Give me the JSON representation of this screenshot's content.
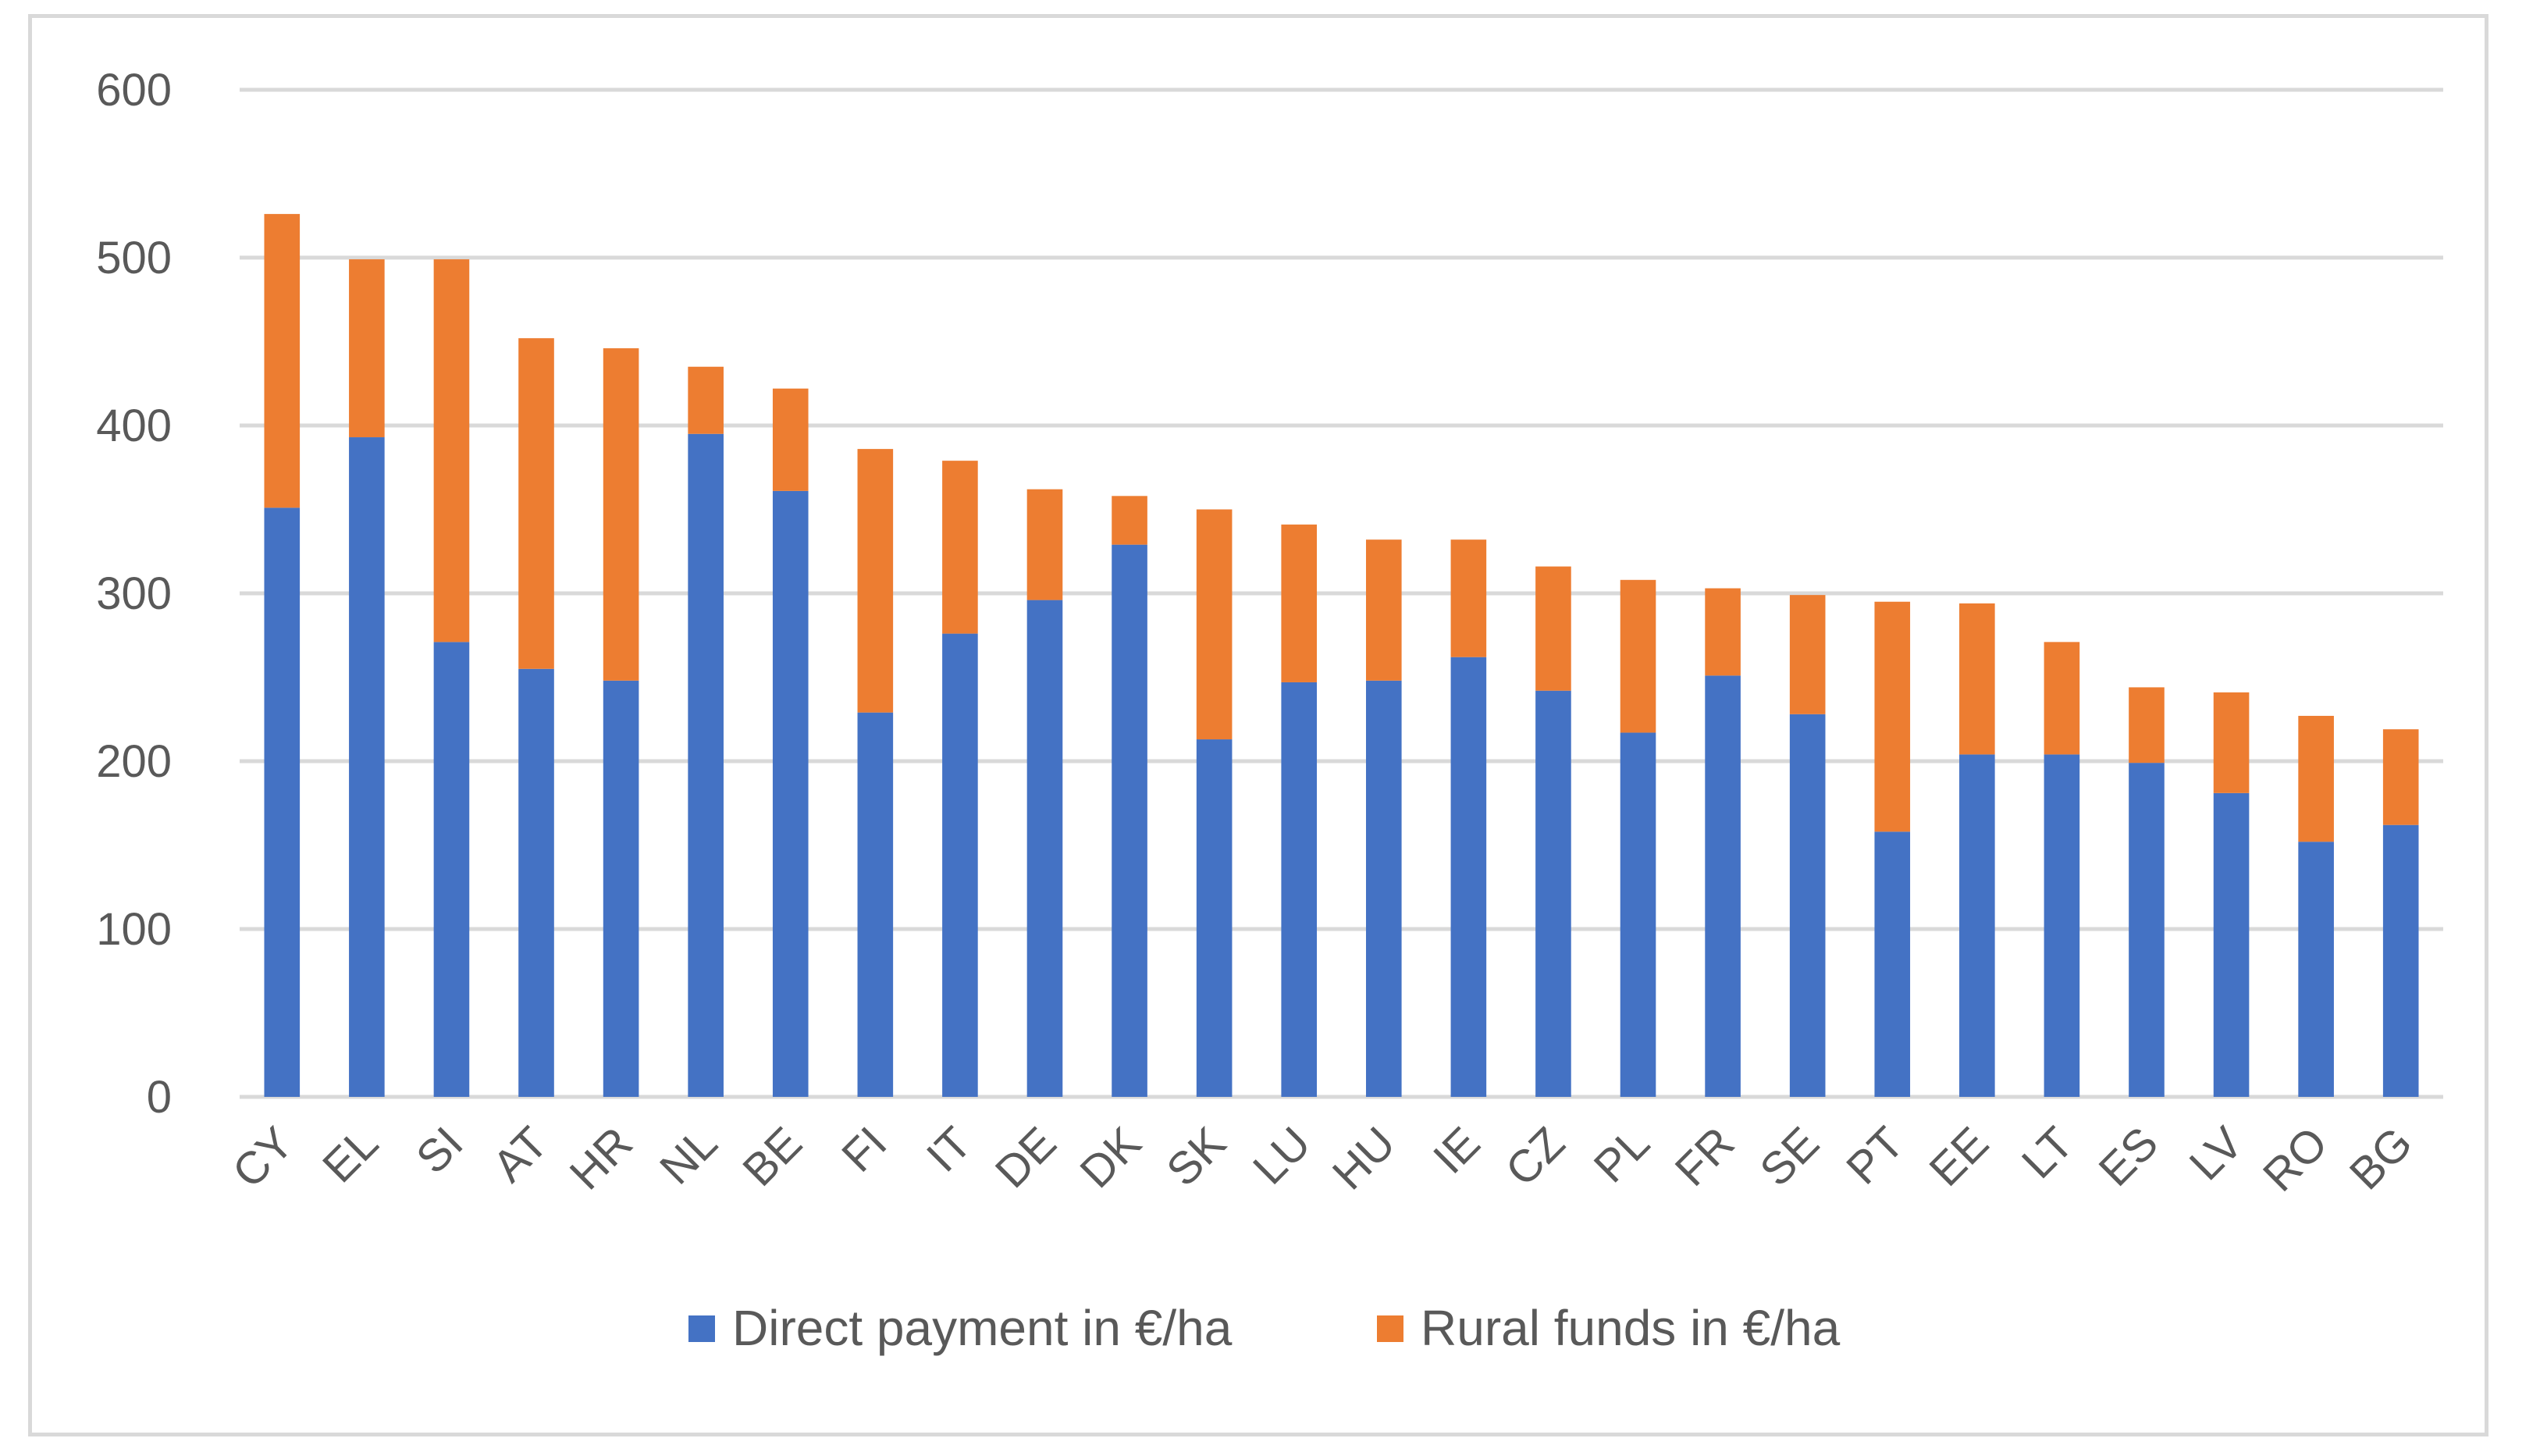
{
  "chart_data": {
    "type": "bar",
    "stacked": true,
    "categories": [
      "CY",
      "EL",
      "SI",
      "AT",
      "HR",
      "NL",
      "BE",
      "FI",
      "IT",
      "DE",
      "DK",
      "SK",
      "LU",
      "HU",
      "IE",
      "CZ",
      "PL",
      "FR",
      "SE",
      "PT",
      "EE",
      "LT",
      "ES",
      "LV",
      "RO",
      "BG"
    ],
    "series": [
      {
        "name": "Direct payment in €/ha",
        "color": "#4472c4",
        "values": [
          351,
          393,
          271,
          255,
          248,
          395,
          361,
          229,
          276,
          296,
          329,
          213,
          247,
          248,
          262,
          242,
          217,
          251,
          228,
          158,
          204,
          204,
          199,
          181,
          152,
          162
        ]
      },
      {
        "name": "Rural funds in €/ha",
        "color": "#ed7d31",
        "values": [
          175,
          106,
          228,
          197,
          198,
          40,
          61,
          157,
          103,
          66,
          29,
          137,
          94,
          84,
          70,
          74,
          91,
          52,
          71,
          137,
          90,
          67,
          45,
          60,
          75,
          57
        ]
      }
    ],
    "ylim": [
      0,
      600
    ],
    "yticks": [
      "0",
      "100",
      "200",
      "300",
      "400",
      "500",
      "600"
    ],
    "grid": true,
    "legend_position": "bottom"
  }
}
